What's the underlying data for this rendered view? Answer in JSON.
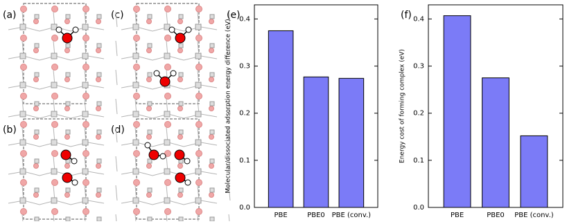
{
  "diagrams": [
    {
      "label": "(a)"
    },
    {
      "label": "(b)"
    },
    {
      "label": "(c)"
    },
    {
      "label": "(d)"
    }
  ],
  "chart_data": [
    {
      "type": "bar",
      "panel_label": "(e)",
      "y_label": "Molecular/dissociated adsorption energy difference (eV)",
      "categories": [
        "PBE",
        "PBE0",
        "PBE (conv.)"
      ],
      "values": [
        0.375,
        0.277,
        0.274
      ],
      "color": "#7b7bf7",
      "ylim": [
        0,
        0.43
      ],
      "yticks": [
        {
          "value": 0,
          "label": "0.0"
        },
        0.1,
        0.2,
        0.3,
        0.4
      ]
    },
    {
      "type": "bar",
      "panel_label": "(f)",
      "y_label": "Energy cost of forming complex (eV)",
      "categories": [
        "PBE",
        "PBE0",
        "PBE (conv.)"
      ],
      "values": [
        0.407,
        0.275,
        0.152
      ],
      "color": "#7b7bf7",
      "ylim": [
        0,
        0.43
      ],
      "yticks": [
        {
          "value": 0,
          "label": "0.0"
        },
        0.1,
        0.2,
        0.3,
        0.4
      ]
    }
  ]
}
